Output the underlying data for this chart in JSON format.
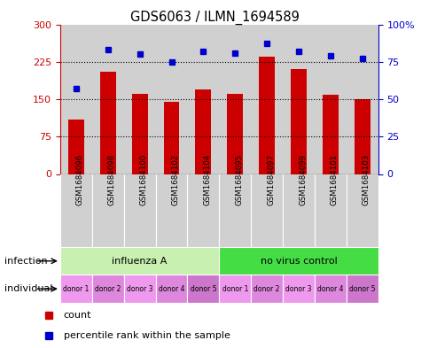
{
  "title": "GDS6063 / ILMN_1694589",
  "samples": [
    "GSM1684096",
    "GSM1684098",
    "GSM1684100",
    "GSM1684102",
    "GSM1684104",
    "GSM1684095",
    "GSM1684097",
    "GSM1684099",
    "GSM1684101",
    "GSM1684103"
  ],
  "counts": [
    110,
    205,
    160,
    145,
    170,
    160,
    235,
    210,
    158,
    150
  ],
  "percentiles": [
    57,
    83,
    80,
    75,
    82,
    81,
    87,
    82,
    79,
    77
  ],
  "bar_color": "#cc0000",
  "dot_color": "#0000cc",
  "left_ylim": [
    0,
    300
  ],
  "left_yticks": [
    0,
    75,
    150,
    225,
    300
  ],
  "right_ylim": [
    0,
    100
  ],
  "right_yticks": [
    0,
    25,
    50,
    75,
    100
  ],
  "right_yticklabels": [
    "0",
    "25",
    "50",
    "75",
    "100%"
  ],
  "grid_dotted_at": [
    75,
    150,
    225
  ],
  "influenza_color": "#c8f0b0",
  "novirus_color": "#44dd44",
  "individual_colors": [
    "#ee99ee",
    "#dd88dd",
    "#ee99ee",
    "#dd88dd",
    "#cc77cc",
    "#ee99ee",
    "#dd88dd",
    "#ee99ee",
    "#dd88dd",
    "#cc77cc"
  ],
  "individual_labels": [
    "donor 1",
    "donor 2",
    "donor 3",
    "donor 4",
    "donor 5",
    "donor 1",
    "donor 2",
    "donor 3",
    "donor 4",
    "donor 5"
  ],
  "sample_bg": "#d0d0d0",
  "left_axis_color": "#cc0000",
  "right_axis_color": "#0000cc",
  "infection_label": "infection",
  "individual_label": "individual",
  "legend_count": "count",
  "legend_percentile": "percentile rank within the sample",
  "bar_width": 0.5
}
